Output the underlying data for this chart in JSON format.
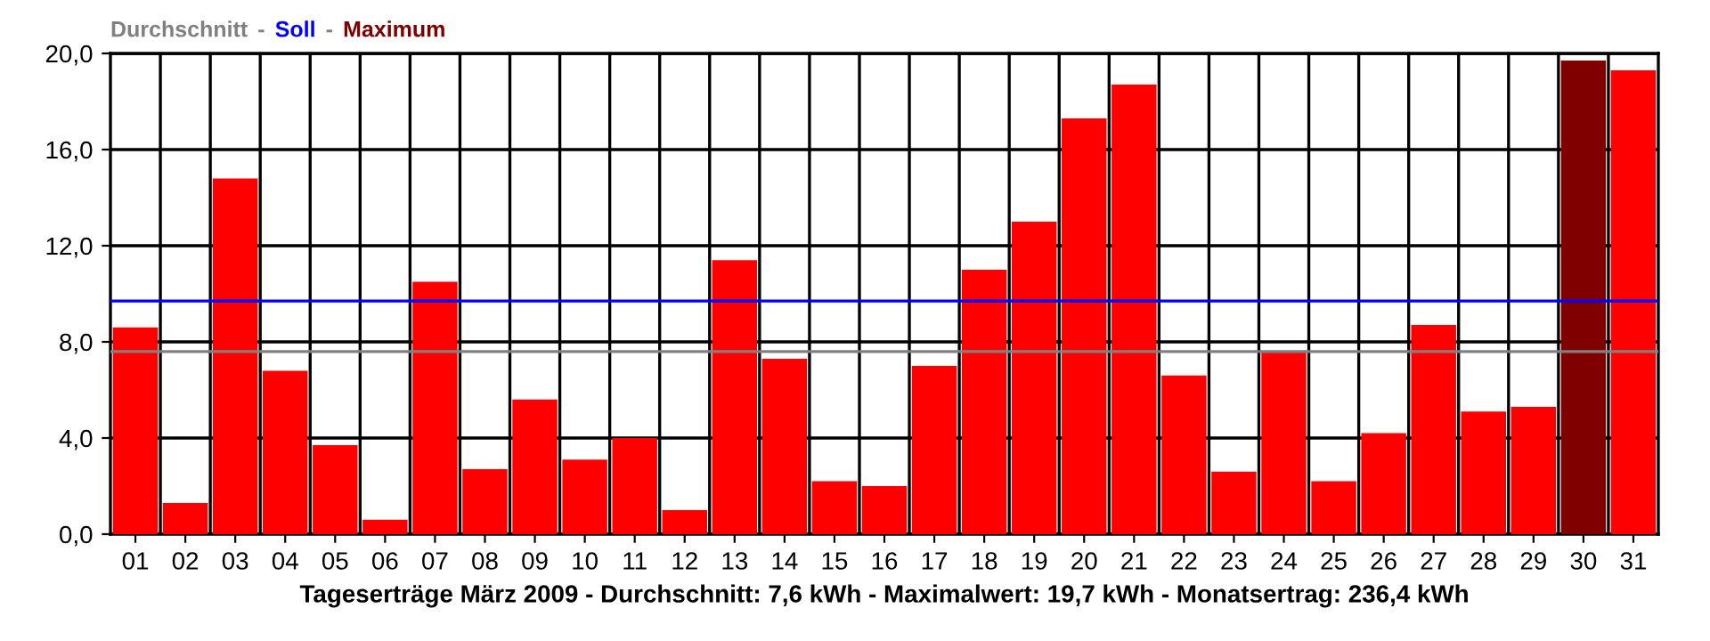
{
  "chart_data": {
    "type": "bar",
    "xlabel": "Tageserträge März 2009 - Durchschnitt: 7,6 kWh - Maximalwert: 19,7 kWh - Monatsertrag: 236,4 kWh",
    "categories": [
      "01",
      "02",
      "03",
      "04",
      "05",
      "06",
      "07",
      "08",
      "09",
      "10",
      "11",
      "12",
      "13",
      "14",
      "15",
      "16",
      "17",
      "18",
      "19",
      "20",
      "21",
      "22",
      "23",
      "24",
      "25",
      "26",
      "27",
      "28",
      "29",
      "30",
      "31"
    ],
    "series": [
      {
        "color": "#ff0000",
        "values": [
          8.6,
          1.3,
          14.8,
          6.8,
          3.7,
          0.6,
          10.5,
          2.7,
          5.6,
          3.1,
          4.0,
          1.0,
          11.4,
          7.3,
          2.2,
          2.0,
          7.0,
          11.0,
          13.0,
          17.3,
          18.7,
          6.6,
          2.6,
          7.6,
          2.2,
          4.2,
          8.7,
          5.1,
          5.3,
          null,
          19.3
        ]
      },
      {
        "name": "Maximum",
        "color": "#800000",
        "values": [
          null,
          null,
          null,
          null,
          null,
          null,
          null,
          null,
          null,
          null,
          null,
          null,
          null,
          null,
          null,
          null,
          null,
          null,
          null,
          null,
          null,
          null,
          null,
          null,
          null,
          null,
          null,
          null,
          null,
          19.7,
          null
        ]
      }
    ],
    "ylim": [
      0,
      20
    ],
    "yticks": [
      {
        "value": 0,
        "label": "0,0"
      },
      {
        "value": 4,
        "label": "4,0"
      },
      {
        "value": 8,
        "label": "8,0"
      },
      {
        "value": 12,
        "label": "12,0"
      },
      {
        "value": 16,
        "label": "16,0"
      },
      {
        "value": 20,
        "label": "20,0"
      }
    ],
    "ref_lines": [
      {
        "axis": "y",
        "value": 7.6,
        "label": "Durchschnitt",
        "color": "#808080"
      },
      {
        "axis": "y",
        "value": 9.7,
        "label": "Soll",
        "color": "#0000ff"
      }
    ],
    "annotations": [
      "-",
      "-"
    ],
    "grid": true,
    "legend": "top left"
  }
}
